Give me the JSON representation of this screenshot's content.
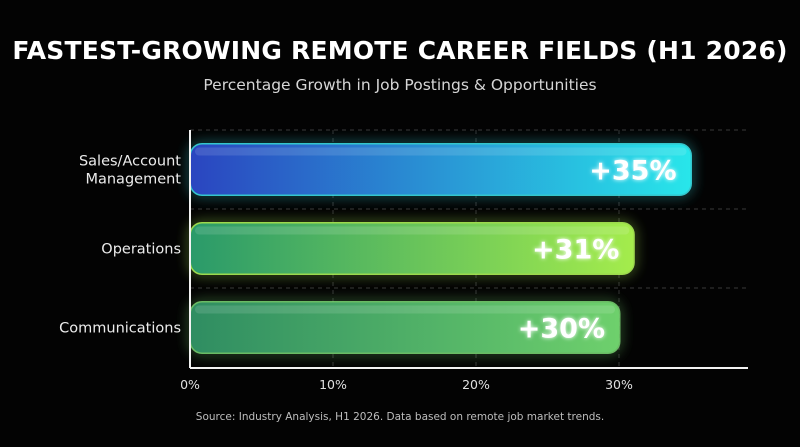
{
  "header": {
    "title": "FASTEST-GROWING REMOTE CAREER FIELDS (H1 2026)",
    "subtitle": "Percentage Growth in Job Postings & Opportunities"
  },
  "footer": {
    "source": "Source: Industry Analysis, H1 2026. Data based on remote job market trends."
  },
  "chart_data": {
    "type": "bar",
    "orientation": "horizontal",
    "title": "FASTEST-GROWING REMOTE CAREER FIELDS (H1 2026)",
    "subtitle": "Percentage Growth in Job Postings & Opportunities",
    "categories": [
      "Sales/Account Management",
      "Operations",
      "Communications"
    ],
    "category_lines": [
      [
        "Sales/Account",
        "Management"
      ],
      [
        "Operations"
      ],
      [
        "Communications"
      ]
    ],
    "values": [
      35,
      31,
      30
    ],
    "data_labels": [
      "+35%",
      "+31%",
      "+30%"
    ],
    "xlim": [
      0,
      38
    ],
    "xticks": [
      0,
      10,
      20,
      30
    ],
    "xtick_labels": [
      "0%",
      "10%",
      "20%",
      "30%"
    ],
    "grid": "dashed",
    "colors": {
      "bar_1": [
        "#2a45c0",
        "#28e6ea"
      ],
      "bar_2": [
        "#2a9a6a",
        "#a4ec4c"
      ],
      "bar_3": [
        "#2f8d62",
        "#6ed06c"
      ],
      "glow_1": "#3ee8f0",
      "glow_2": "#b7ff5a",
      "glow_3": "#7cdc76"
    }
  }
}
